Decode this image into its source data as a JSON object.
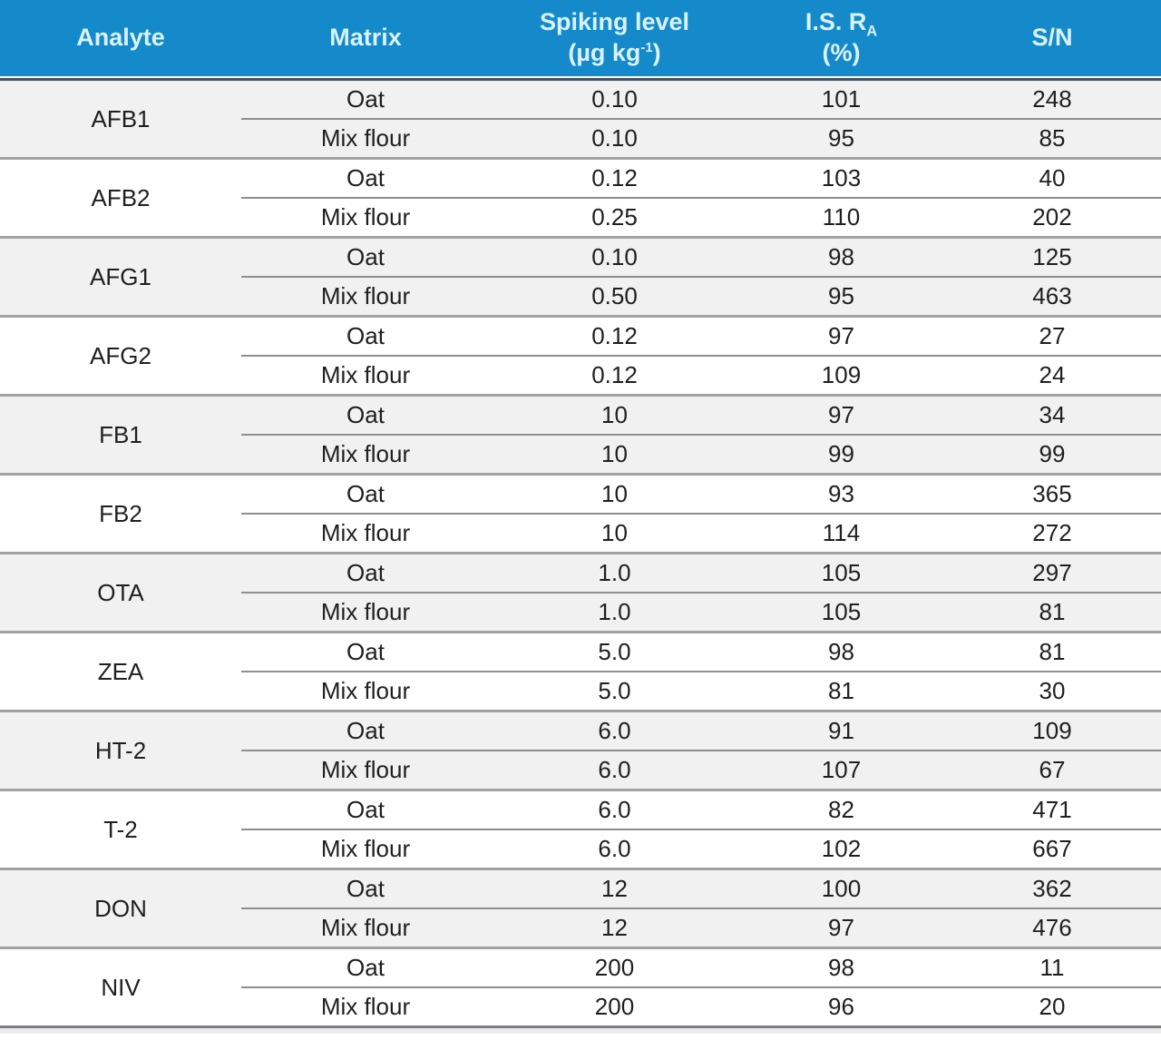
{
  "colors": {
    "header_background": "#158aca",
    "header_text": "#d9f2fc",
    "band_gray": "#f1f1f2",
    "band_white": "#ffffff",
    "header_underline": "#47525e",
    "group_separator": "#a1a1a3",
    "row_separator": "#8e8e90",
    "data_text": "#1f1f1f"
  },
  "header": {
    "analyte": "Analyte",
    "matrix": "Matrix",
    "spiking_line1": "Spiking level",
    "spiking_line2_pre": "(µg kg",
    "spiking_line2_sup": "-1",
    "spiking_line2_post": ")",
    "isra_line1_pre": "I.S. R",
    "isra_line1_sub": "A",
    "isra_line2": "(%)",
    "sn": "S/N"
  },
  "table": {
    "groups": [
      {
        "analyte": "AFB1",
        "rows": [
          {
            "matrix": "Oat",
            "spiking": "0.10",
            "is_ra": "101",
            "sn": "248"
          },
          {
            "matrix": "Mix flour",
            "spiking": "0.10",
            "is_ra": "95",
            "sn": "85"
          }
        ]
      },
      {
        "analyte": "AFB2",
        "rows": [
          {
            "matrix": "Oat",
            "spiking": "0.12",
            "is_ra": "103",
            "sn": "40"
          },
          {
            "matrix": "Mix flour",
            "spiking": "0.25",
            "is_ra": "110",
            "sn": "202"
          }
        ]
      },
      {
        "analyte": "AFG1",
        "rows": [
          {
            "matrix": "Oat",
            "spiking": "0.10",
            "is_ra": "98",
            "sn": "125"
          },
          {
            "matrix": "Mix flour",
            "spiking": "0.50",
            "is_ra": "95",
            "sn": "463"
          }
        ]
      },
      {
        "analyte": "AFG2",
        "rows": [
          {
            "matrix": "Oat",
            "spiking": "0.12",
            "is_ra": "97",
            "sn": "27"
          },
          {
            "matrix": "Mix flour",
            "spiking": "0.12",
            "is_ra": "109",
            "sn": "24"
          }
        ]
      },
      {
        "analyte": "FB1",
        "rows": [
          {
            "matrix": "Oat",
            "spiking": "10",
            "is_ra": "97",
            "sn": "34"
          },
          {
            "matrix": "Mix flour",
            "spiking": "10",
            "is_ra": "99",
            "sn": "99"
          }
        ]
      },
      {
        "analyte": "FB2",
        "rows": [
          {
            "matrix": "Oat",
            "spiking": "10",
            "is_ra": "93",
            "sn": "365"
          },
          {
            "matrix": "Mix flour",
            "spiking": "10",
            "is_ra": "114",
            "sn": "272"
          }
        ]
      },
      {
        "analyte": "OTA",
        "rows": [
          {
            "matrix": "Oat",
            "spiking": "1.0",
            "is_ra": "105",
            "sn": "297"
          },
          {
            "matrix": "Mix flour",
            "spiking": "1.0",
            "is_ra": "105",
            "sn": "81"
          }
        ]
      },
      {
        "analyte": "ZEA",
        "rows": [
          {
            "matrix": "Oat",
            "spiking": "5.0",
            "is_ra": "98",
            "sn": "81"
          },
          {
            "matrix": "Mix flour",
            "spiking": "5.0",
            "is_ra": "81",
            "sn": "30"
          }
        ]
      },
      {
        "analyte": "HT-2",
        "rows": [
          {
            "matrix": "Oat",
            "spiking": "6.0",
            "is_ra": "91",
            "sn": "109"
          },
          {
            "matrix": "Mix flour",
            "spiking": "6.0",
            "is_ra": "107",
            "sn": "67"
          }
        ]
      },
      {
        "analyte": "T-2",
        "rows": [
          {
            "matrix": "Oat",
            "spiking": "6.0",
            "is_ra": "82",
            "sn": "471"
          },
          {
            "matrix": "Mix flour",
            "spiking": "6.0",
            "is_ra": "102",
            "sn": "667"
          }
        ]
      },
      {
        "analyte": "DON",
        "rows": [
          {
            "matrix": "Oat",
            "spiking": "12",
            "is_ra": "100",
            "sn": "362"
          },
          {
            "matrix": "Mix flour",
            "spiking": "12",
            "is_ra": "97",
            "sn": "476"
          }
        ]
      },
      {
        "analyte": "NIV",
        "rows": [
          {
            "matrix": "Oat",
            "spiking": "200",
            "is_ra": "98",
            "sn": "11"
          },
          {
            "matrix": "Mix flour",
            "spiking": "200",
            "is_ra": "96",
            "sn": "20"
          }
        ]
      }
    ]
  }
}
